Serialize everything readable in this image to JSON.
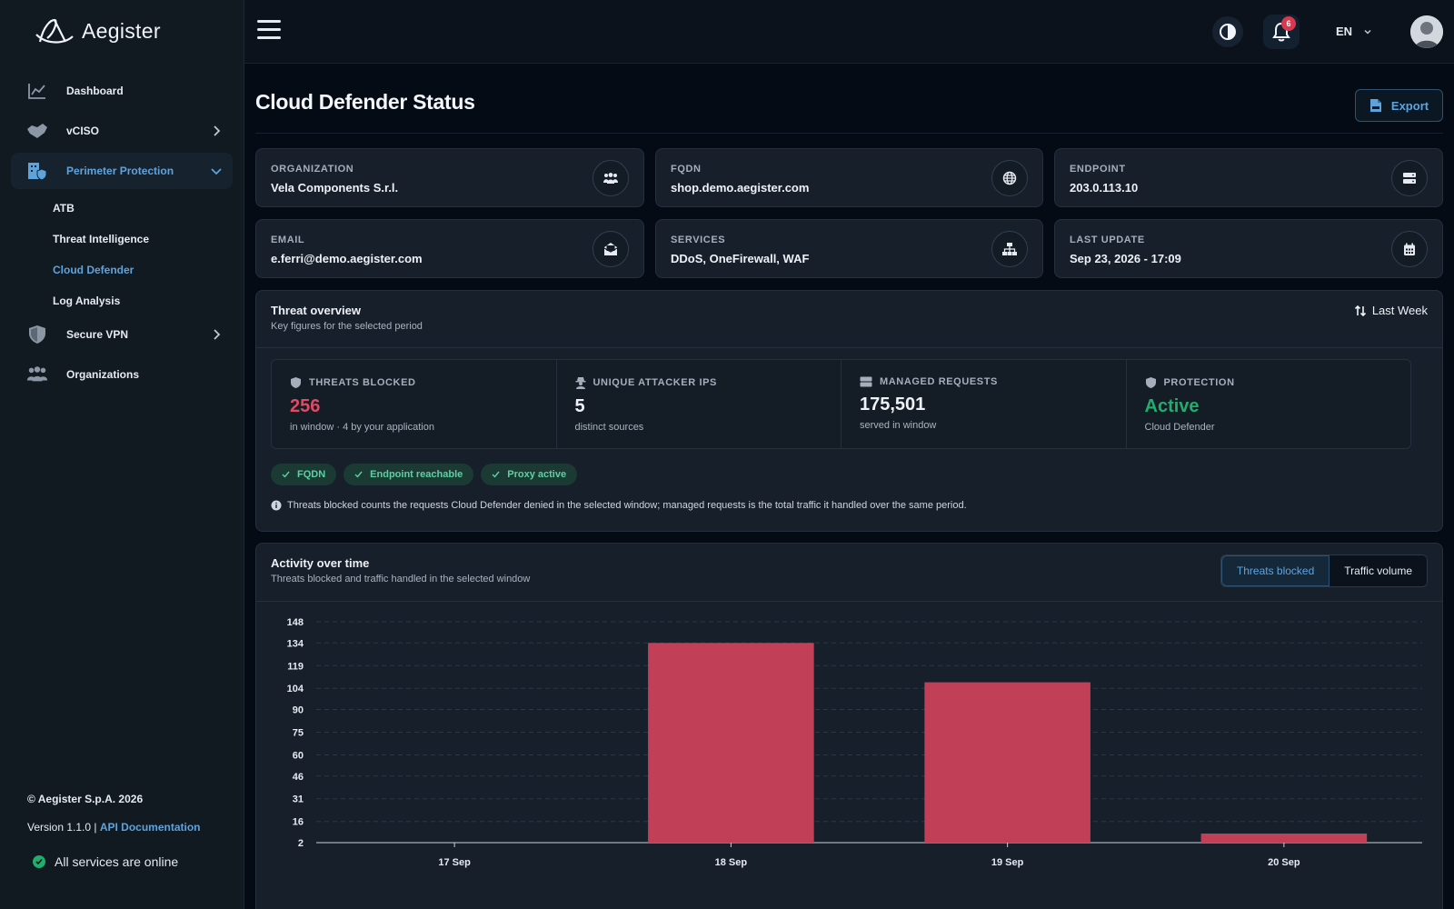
{
  "brand": {
    "name": "Aegister"
  },
  "sidebar": {
    "items": [
      {
        "label": "Dashboard",
        "icon": "chart-line-icon"
      },
      {
        "label": "vCISO",
        "icon": "handshake-icon"
      },
      {
        "label": "Perimeter Protection",
        "icon": "building-shield-icon"
      },
      {
        "label": "Secure VPN",
        "icon": "shield-icon"
      },
      {
        "label": "Organizations",
        "icon": "users-icon"
      }
    ],
    "subitems": [
      "ATB",
      "Threat Intelligence",
      "Cloud Defender",
      "Log Analysis"
    ],
    "active_subitem": "Cloud Defender"
  },
  "footer": {
    "copyright": "© Aegister S.p.A. 2026",
    "version": "Version 1.1.0 |",
    "api_link": "API Documentation",
    "status": "All services are online"
  },
  "topbar": {
    "notifications": "6",
    "language": "EN"
  },
  "page": {
    "title": "Cloud Defender Status",
    "export_label": "Export"
  },
  "info": {
    "organization": {
      "label": "ORGANIZATION",
      "value": "Vela Components S.r.l."
    },
    "fqdn": {
      "label": "FQDN",
      "value": "shop.demo.aegister.com"
    },
    "endpoint": {
      "label": "ENDPOINT",
      "value": "203.0.113.10"
    },
    "email": {
      "label": "EMAIL",
      "value": "e.ferri@demo.aegister.com"
    },
    "services": {
      "label": "SERVICES",
      "value": "DDoS, OneFirewall, WAF"
    },
    "last_update": {
      "label": "LAST UPDATE",
      "value": "Sep 23, 2026 - 17:09"
    }
  },
  "overview": {
    "title": "Threat overview",
    "subtitle": "Key figures for the selected period",
    "period": "Last Week",
    "stats": {
      "threats": {
        "label": "THREATS BLOCKED",
        "value": "256",
        "sub": "in window · 4 by your application"
      },
      "ips": {
        "label": "UNIQUE ATTACKER IPS",
        "value": "5",
        "sub": "distinct sources"
      },
      "requests": {
        "label": "MANAGED REQUESTS",
        "value": "175,501",
        "sub": "served in window"
      },
      "protection": {
        "label": "PROTECTION",
        "value": "Active",
        "sub": "Cloud Defender"
      }
    },
    "chips": [
      "FQDN",
      "Endpoint reachable",
      "Proxy active"
    ],
    "note": "Threats blocked counts the requests Cloud Defender denied in the selected window; managed requests is the total traffic it handled over the same period."
  },
  "activity": {
    "title": "Activity over time",
    "subtitle": "Threats blocked and traffic handled in the selected window",
    "toggle": [
      "Threats blocked",
      "Traffic volume"
    ]
  },
  "colors": {
    "accent": "#5fa3dc",
    "danger": "#e04a63",
    "success": "#1fae6b",
    "bar": "#c23f58"
  },
  "chart_data": {
    "type": "bar",
    "categories": [
      "17 Sep",
      "18 Sep",
      "19 Sep",
      "20 Sep"
    ],
    "values": [
      0,
      134,
      108,
      8
    ],
    "yticks": [
      2,
      16,
      31,
      46,
      60,
      75,
      90,
      104,
      119,
      134,
      148
    ],
    "ylim": [
      0,
      150
    ],
    "grid": true,
    "title": "",
    "xlabel": "",
    "ylabel": ""
  }
}
